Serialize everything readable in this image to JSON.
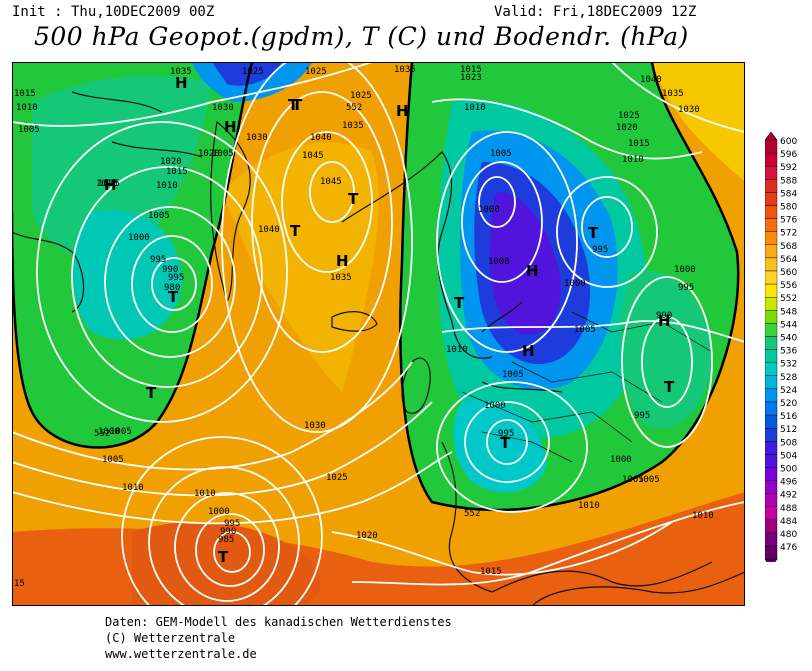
{
  "header": {
    "init": "Init : Thu,10DEC2009 00Z",
    "valid": "Valid: Fri,18DEC2009 12Z",
    "title": "500 hPa Geopot.(gpdm), T (C) und Bodendr. (hPa)"
  },
  "map": {
    "pressure_labels": [
      {
        "text": "1035"
      },
      {
        "text": "1025"
      },
      {
        "text": "1025"
      },
      {
        "text": "1035"
      },
      {
        "text": "1015"
      },
      {
        "text": "1023"
      },
      {
        "text": "1015"
      },
      {
        "text": "1010"
      },
      {
        "text": "1005"
      },
      {
        "text": "1030"
      },
      {
        "text": "1025"
      },
      {
        "text": "1035"
      },
      {
        "text": "1040"
      },
      {
        "text": "1030"
      },
      {
        "text": "1045"
      },
      {
        "text": "1045"
      },
      {
        "text": "1020"
      },
      {
        "text": "1015"
      },
      {
        "text": "1010"
      },
      {
        "text": "1005"
      },
      {
        "text": "1020"
      },
      {
        "text": "1015"
      },
      {
        "text": "1010"
      },
      {
        "text": "1005"
      },
      {
        "text": "1000"
      },
      {
        "text": "995"
      },
      {
        "text": "990"
      },
      {
        "text": "995"
      },
      {
        "text": "980"
      },
      {
        "text": "1040"
      },
      {
        "text": "1035"
      },
      {
        "text": "1010"
      },
      {
        "text": "1000"
      },
      {
        "text": "1005"
      },
      {
        "text": "1000"
      },
      {
        "text": "1000"
      },
      {
        "text": "995"
      },
      {
        "text": "1000"
      },
      {
        "text": "995"
      },
      {
        "text": "990"
      },
      {
        "text": "1005"
      },
      {
        "text": "1010"
      },
      {
        "text": "1005"
      },
      {
        "text": "1000"
      },
      {
        "text": "995"
      },
      {
        "text": "995"
      },
      {
        "text": "1000"
      },
      {
        "text": "1005"
      },
      {
        "text": "1030"
      },
      {
        "text": "1025"
      },
      {
        "text": "1020"
      },
      {
        "text": "1015"
      },
      {
        "text": "1010"
      },
      {
        "text": "1010"
      },
      {
        "text": "1005"
      },
      {
        "text": "1000"
      },
      {
        "text": "995"
      },
      {
        "text": "990"
      },
      {
        "text": "985"
      },
      {
        "text": "1010"
      },
      {
        "text": "1005"
      },
      {
        "text": "1010"
      },
      {
        "text": "1005"
      },
      {
        "text": "1000"
      },
      {
        "text": "1040"
      },
      {
        "text": "1035"
      },
      {
        "text": "1030"
      },
      {
        "text": "1025"
      },
      {
        "text": "1020"
      },
      {
        "text": "1015"
      },
      {
        "text": "1010"
      },
      {
        "text": "15"
      },
      {
        "text": "552"
      },
      {
        "text": "552"
      },
      {
        "text": "552"
      }
    ],
    "centers": [
      {
        "type": "H"
      },
      {
        "type": "H"
      },
      {
        "type": "H"
      },
      {
        "type": "T"
      },
      {
        "type": "H"
      },
      {
        "type": "T"
      },
      {
        "type": "T"
      },
      {
        "type": "H"
      },
      {
        "type": "H"
      },
      {
        "type": "T"
      },
      {
        "type": "T"
      },
      {
        "type": "T"
      },
      {
        "type": "H"
      },
      {
        "type": "H"
      },
      {
        "type": "T"
      },
      {
        "type": "T"
      },
      {
        "type": "T"
      },
      {
        "type": "T"
      },
      {
        "type": "T"
      }
    ]
  },
  "legend": {
    "ticks": [
      "600",
      "596",
      "592",
      "588",
      "584",
      "580",
      "576",
      "572",
      "568",
      "564",
      "560",
      "556",
      "552",
      "548",
      "544",
      "540",
      "536",
      "532",
      "528",
      "524",
      "520",
      "516",
      "512",
      "508",
      "504",
      "500",
      "496",
      "492",
      "488",
      "484",
      "480",
      "476"
    ],
    "colors": [
      "#b4002d",
      "#c8002d",
      "#d2143c",
      "#dc2d23",
      "#e63c19",
      "#f0550f",
      "#f56e0a",
      "#fa8c05",
      "#fcaa14",
      "#fdbe1e",
      "#fed228",
      "#fae600",
      "#c8e600",
      "#7ddc00",
      "#3cd23c",
      "#14c878",
      "#00c8a0",
      "#00c8c8",
      "#00b4dc",
      "#0096f0",
      "#0078f0",
      "#005adc",
      "#1e3cdc",
      "#3c1edc",
      "#5014dc",
      "#7800dc",
      "#9600c8",
      "#b400b4",
      "#c800a0",
      "#a0007d",
      "#780078",
      "#640064"
    ]
  },
  "footer": {
    "line1": "Daten: GEM-Modell des kanadischen Wetterdienstes",
    "line2": "(C) Wetterzentrale",
    "line3": "www.wetterzentrale.de"
  }
}
